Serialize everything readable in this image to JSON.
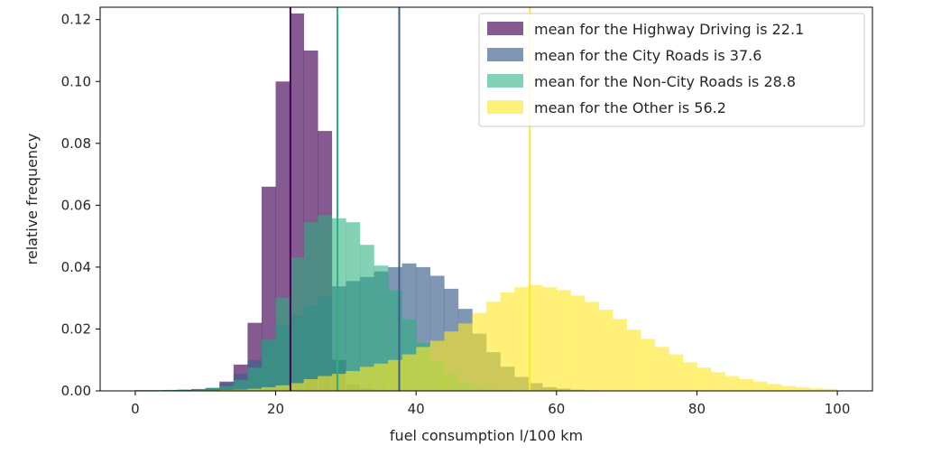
{
  "chart_data": {
    "type": "histogram",
    "title": "",
    "xlabel": "fuel consumption l/100 km",
    "ylabel": "relative frequency",
    "xlim": [
      -5,
      105
    ],
    "ylim": [
      0,
      0.124
    ],
    "xticks": [
      0,
      20,
      40,
      60,
      80,
      100
    ],
    "yticks": [
      0.0,
      0.02,
      0.04,
      0.06,
      0.08,
      0.1,
      0.12
    ],
    "xtick_labels": [
      "0",
      "20",
      "40",
      "60",
      "80",
      "100"
    ],
    "ytick_labels": [
      "0.00",
      "0.02",
      "0.04",
      "0.06",
      "0.08",
      "0.10",
      "0.12"
    ],
    "grid": false,
    "legend_position": "top-right",
    "bin_width": 2,
    "bin_start": 0,
    "bin_end": 100,
    "series": [
      {
        "name": "Highway Driving",
        "legend_label": "mean for the Highway Driving is 22.1",
        "mean": 22.1,
        "color": "#440154",
        "opacity": 0.65,
        "values": [
          0.0002,
          0.0002,
          0.0002,
          0.0003,
          0.0005,
          0.0008,
          0.003,
          0.0085,
          0.022,
          0.066,
          0.1,
          0.122,
          0.11,
          0.084,
          0.01,
          0.002,
          0.0008,
          0.0004,
          0.0002,
          0.0001,
          0.0001,
          0.0001,
          0.0001,
          0.0001,
          0.0001,
          0.0001,
          0.0001,
          0.0001,
          0.0001,
          0.0001,
          0.0001,
          0.0001,
          0.0001,
          0.0001,
          0.0001,
          0.0001,
          0.0001,
          0.0001,
          0.0001,
          0.0001,
          0.0001,
          0.0001,
          0.0001,
          0.0001,
          0.0001,
          0.0001,
          0.0001,
          0.0001,
          0.0001,
          0.0001
        ]
      },
      {
        "name": "City Roads",
        "legend_label": "mean for the City Roads is 37.6",
        "mean": 37.6,
        "color": "#3b5f8a",
        "opacity": 0.65,
        "values": [
          0.0002,
          0.0002,
          0.0003,
          0.0004,
          0.0006,
          0.001,
          0.0025,
          0.0055,
          0.01,
          0.0165,
          0.0215,
          0.0245,
          0.0275,
          0.0308,
          0.0338,
          0.0355,
          0.0368,
          0.0386,
          0.04,
          0.0412,
          0.04,
          0.0372,
          0.033,
          0.0265,
          0.0185,
          0.0125,
          0.0078,
          0.0045,
          0.0025,
          0.0012,
          0.0007,
          0.0004,
          0.0002,
          0.0001,
          0.0001,
          0.0001,
          0.0001,
          0.0001,
          0.0001,
          0.0001,
          0.0001,
          0.0001,
          0.0001,
          0.0001,
          0.0001,
          0.0001,
          0.0001,
          0.0001,
          0.0001,
          0.0001
        ]
      },
      {
        "name": "Non-City Roads",
        "legend_label": "mean for the Non-City Roads is 28.8",
        "mean": 28.8,
        "color": "#2bb07f",
        "opacity": 0.58,
        "values": [
          0.0002,
          0.0002,
          0.0003,
          0.0004,
          0.0006,
          0.0009,
          0.0016,
          0.0035,
          0.0075,
          0.0165,
          0.03,
          0.0432,
          0.0545,
          0.0568,
          0.0558,
          0.0545,
          0.0472,
          0.0405,
          0.0325,
          0.0232,
          0.0155,
          0.0095,
          0.0055,
          0.0025,
          0.0012,
          0.0005,
          0.0003,
          0.0002,
          0.0001,
          0.0001,
          0.0001,
          0.0001,
          0.0001,
          0.0001,
          0.0001,
          0.0001,
          0.0001,
          0.0001,
          0.0001,
          0.0001,
          0.0001,
          0.0001,
          0.0001,
          0.0001,
          0.0001,
          0.0001,
          0.0001,
          0.0001,
          0.0001,
          0.0001
        ]
      },
      {
        "name": "Other",
        "legend_label": "mean for the Other is 56.2",
        "mean": 56.2,
        "color": "#fde725",
        "opacity": 0.62,
        "values": [
          0.0001,
          0.0001,
          0.0001,
          0.0001,
          0.0002,
          0.0002,
          0.0003,
          0.0004,
          0.0007,
          0.0012,
          0.0018,
          0.0025,
          0.0038,
          0.0048,
          0.0055,
          0.0064,
          0.0078,
          0.0088,
          0.01,
          0.0118,
          0.0142,
          0.0162,
          0.0192,
          0.0218,
          0.0252,
          0.0288,
          0.0318,
          0.0335,
          0.0342,
          0.0335,
          0.0325,
          0.0308,
          0.0288,
          0.0262,
          0.0232,
          0.0198,
          0.0168,
          0.0142,
          0.0118,
          0.0092,
          0.0075,
          0.006,
          0.0048,
          0.0038,
          0.003,
          0.0022,
          0.0016,
          0.0012,
          0.0008,
          0.0006
        ]
      }
    ]
  }
}
